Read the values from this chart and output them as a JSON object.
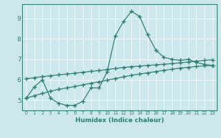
{
  "xlabel": "Humidex (Indice chaleur)",
  "bg_color": "#cce8ed",
  "line_color": "#2e7d6e",
  "grid_color": "#b0d4da",
  "xlim": [
    -0.5,
    23.5
  ],
  "ylim": [
    4.5,
    9.7
  ],
  "yticks": [
    5,
    6,
    7,
    8,
    9
  ],
  "xticks": [
    0,
    1,
    2,
    3,
    4,
    5,
    6,
    7,
    8,
    9,
    10,
    11,
    12,
    13,
    14,
    15,
    16,
    17,
    18,
    19,
    20,
    21,
    22,
    23
  ],
  "series1_x": [
    0,
    1,
    2,
    3,
    4,
    5,
    6,
    7,
    8,
    9,
    10,
    11,
    12,
    13,
    14,
    15,
    16,
    17,
    18,
    19,
    20,
    21,
    22,
    23
  ],
  "series1_y": [
    5.1,
    5.65,
    6.0,
    5.1,
    4.85,
    4.75,
    4.75,
    4.95,
    5.6,
    5.6,
    6.4,
    8.15,
    8.85,
    9.35,
    9.1,
    8.2,
    7.45,
    7.1,
    7.0,
    6.95,
    7.0,
    6.85,
    6.75,
    6.7
  ],
  "series2_x": [
    0,
    1,
    2,
    3,
    4,
    5,
    6,
    7,
    8,
    9,
    10,
    11,
    12,
    13,
    14,
    15,
    16,
    17,
    18,
    19,
    20,
    21,
    22,
    23
  ],
  "series2_y": [
    6.05,
    6.1,
    6.15,
    6.2,
    6.24,
    6.28,
    6.32,
    6.37,
    6.41,
    6.45,
    6.5,
    6.55,
    6.6,
    6.64,
    6.67,
    6.7,
    6.73,
    6.76,
    6.79,
    6.83,
    6.87,
    6.91,
    6.95,
    6.98
  ],
  "series3_x": [
    0,
    1,
    2,
    3,
    4,
    5,
    6,
    7,
    8,
    9,
    10,
    11,
    12,
    13,
    14,
    15,
    16,
    17,
    18,
    19,
    20,
    21,
    22,
    23
  ],
  "series3_y": [
    5.1,
    5.22,
    5.33,
    5.44,
    5.53,
    5.6,
    5.67,
    5.75,
    5.83,
    5.9,
    5.98,
    6.06,
    6.14,
    6.22,
    6.28,
    6.34,
    6.4,
    6.46,
    6.52,
    6.57,
    6.61,
    6.65,
    6.68,
    6.7
  ]
}
